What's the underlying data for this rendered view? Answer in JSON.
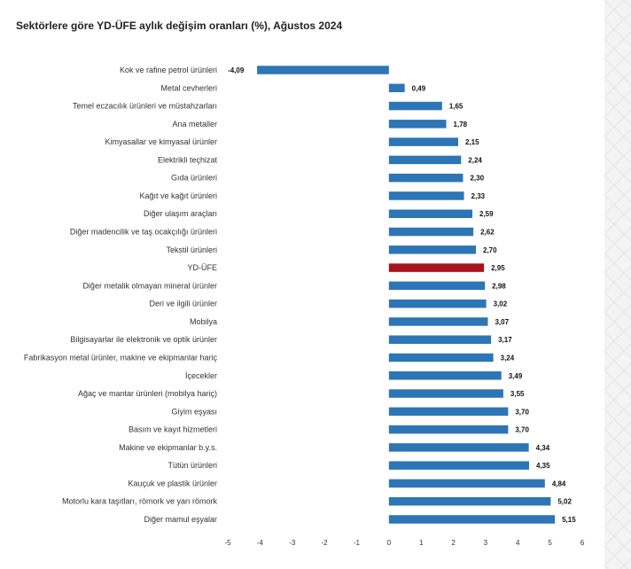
{
  "chart_data": {
    "type": "bar",
    "orientation": "horizontal",
    "title": "Sektörlere göre YD-ÜFE aylık değişim oranları (%), Ağustos 2024",
    "xlabel": "",
    "ylabel": "",
    "xlim": [
      -5,
      6
    ],
    "xticks": [
      "-5",
      "-4",
      "-3",
      "-2",
      "-1",
      "0",
      "1",
      "2",
      "3",
      "4",
      "5",
      "6"
    ],
    "grid": false,
    "legend": "none",
    "colors": {
      "default": "#2e75b6",
      "highlight": "#a6141b"
    },
    "highlight_category": "YD-ÜFE",
    "categories": [
      "Kok ve rafine petrol ürünleri",
      "Metal cevherleri",
      "Temel eczacılık ürünleri ve müstahzarları",
      "Ana metaller",
      "Kimyasallar ve kimyasal ürünler",
      "Elektrikli teçhizat",
      "Gıda ürünleri",
      "Kağıt ve kağıt ürünleri",
      "Diğer ulaşım araçları",
      "Diğer madencilik ve taş ocakçılığı ürünleri",
      "Tekstil ürünleri",
      "YD-ÜFE",
      "Diğer metalik olmayan mineral ürünler",
      "Deri ve ilgili ürünler",
      "Mobilya",
      "Bilgisayarlar ile elektronik ve optik ürünler",
      "Fabrikasyon metal ürünler, makine ve ekipmanlar hariç",
      "İçecekler",
      "Ağaç ve mantar ürünleri (mobilya hariç)",
      "Giyim eşyası",
      "Basım ve kayıt hizmetleri",
      "Makine ve ekipmanlar b.y.s.",
      "Tütün ürünleri",
      "Kauçuk ve plastik ürünler",
      "Motorlu kara taşıtları, römork ve yarı römork",
      "Diğer mamul eşyalar"
    ],
    "values": [
      -4.09,
      0.49,
      1.65,
      1.78,
      2.15,
      2.24,
      2.3,
      2.33,
      2.59,
      2.62,
      2.7,
      2.95,
      2.98,
      3.02,
      3.07,
      3.17,
      3.24,
      3.49,
      3.55,
      3.7,
      3.7,
      4.34,
      4.35,
      4.84,
      5.02,
      5.15
    ],
    "value_labels": [
      "-4,09",
      "0,49",
      "1,65",
      "1,78",
      "2,15",
      "2,24",
      "2,30",
      "2,33",
      "2,59",
      "2,62",
      "2,70",
      "2,95",
      "2,98",
      "3,02",
      "3,07",
      "3,17",
      "3,24",
      "3,49",
      "3,55",
      "3,70",
      "3,70",
      "4,34",
      "4,35",
      "4,84",
      "5,02",
      "5,15"
    ]
  }
}
